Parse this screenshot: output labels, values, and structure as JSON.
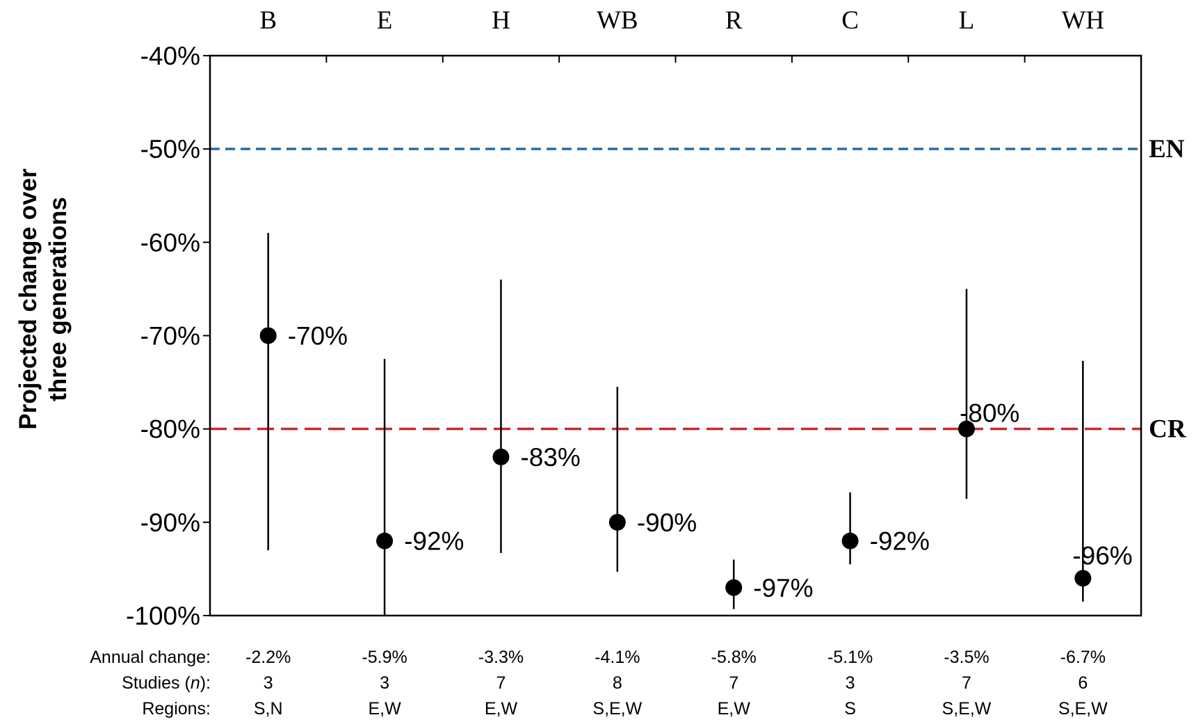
{
  "chart_data": {
    "type": "scatter",
    "ylabel_lines": [
      "Projected change over",
      "three generations"
    ],
    "ylim": [
      -100,
      -40
    ],
    "yticks": [
      -40,
      -50,
      -60,
      -70,
      -80,
      -90,
      -100
    ],
    "ytick_labels": [
      "-40%",
      "-50%",
      "-60%",
      "-70%",
      "-80%",
      "-90%",
      "-100%"
    ],
    "categories": [
      "B",
      "E",
      "H",
      "WB",
      "R",
      "C",
      "L",
      "WH"
    ],
    "values": [
      -70,
      -92,
      -83,
      -90,
      -97,
      -92,
      -80,
      -96
    ],
    "value_labels": [
      "-70%",
      "-92%",
      "-83%",
      "-90%",
      "-97%",
      "-92%",
      "-80%",
      "-96%"
    ],
    "error_low": [
      -93,
      -100,
      -93.3,
      -95.3,
      -99.3,
      -94.5,
      -87.5,
      -98.5
    ],
    "error_high": [
      -59,
      -72.5,
      -64,
      -75.5,
      -94,
      -86.8,
      -65,
      -72.7
    ],
    "reference_lines": [
      {
        "label": "EN",
        "value": -50,
        "color": "#2e6aa6",
        "style": "dashed"
      },
      {
        "label": "CR",
        "value": -80,
        "color": "#c8282d",
        "style": "dashed"
      }
    ],
    "marker_color": "#000000",
    "grid": false,
    "table": {
      "row_labels": [
        "Annual change:",
        "Studies (",
        "n",
        "):",
        "Regions:"
      ],
      "annual_change": [
        "-2.2%",
        "-5.9%",
        "-3.3%",
        "-4.1%",
        "-5.8%",
        "-5.1%",
        "-3.5%",
        "-6.7%"
      ],
      "studies": [
        "3",
        "3",
        "7",
        "8",
        "7",
        "3",
        "7",
        "6"
      ],
      "regions": [
        "S,N",
        "E,W",
        "E,W",
        "S,E,W",
        "E,W",
        "S",
        "S,E,W",
        "S,E,W"
      ]
    }
  }
}
